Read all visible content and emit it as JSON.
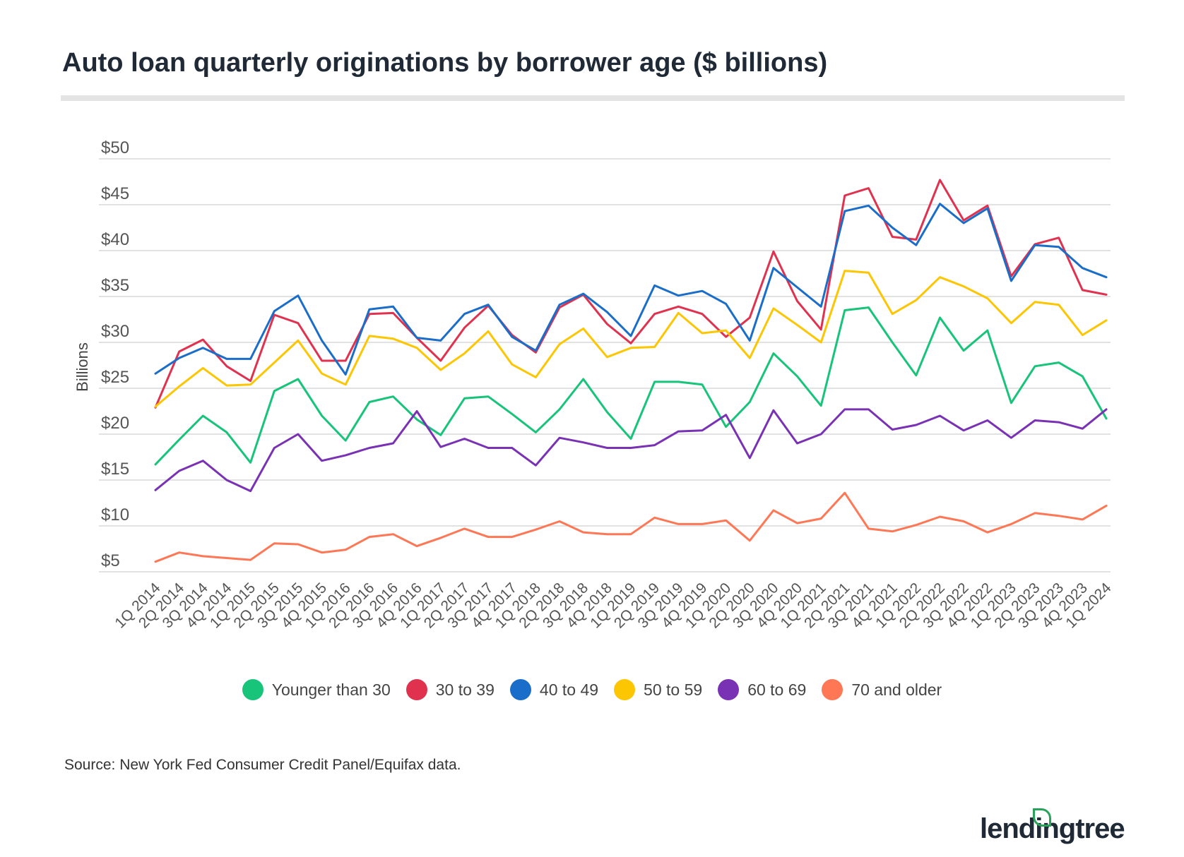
{
  "title": "Auto loan quarterly originations by borrower age ($ billions)",
  "source": "Source: New York Fed Consumer Credit Panel/Equifax data.",
  "logo_text": "lendingtree",
  "chart_data": {
    "type": "line",
    "title": "Auto loan quarterly originations by borrower age ($ billions)",
    "ylabel": "Billions",
    "xlabel": "",
    "ylim": [
      5,
      50
    ],
    "yticks": [
      5,
      10,
      15,
      20,
      25,
      30,
      35,
      40,
      45,
      50
    ],
    "ytick_labels": [
      "$5",
      "$10",
      "$15",
      "$20",
      "$25",
      "$30",
      "$35",
      "$40",
      "$45",
      "$50"
    ],
    "grid": true,
    "legend_position": "bottom",
    "categories": [
      "1Q 2014",
      "2Q 2014",
      "3Q 2014",
      "4Q 2014",
      "1Q 2015",
      "2Q 2015",
      "3Q 2015",
      "4Q 2015",
      "1Q 2016",
      "2Q 2016",
      "3Q 2016",
      "4Q 2016",
      "1Q 2017",
      "2Q 2017",
      "3Q 2017",
      "4Q 2017",
      "1Q 2018",
      "2Q 2018",
      "3Q 2018",
      "4Q 2018",
      "1Q 2019",
      "2Q 2019",
      "3Q 2019",
      "4Q 2019",
      "1Q 2020",
      "2Q 2020",
      "3Q 2020",
      "4Q 2020",
      "1Q 2021",
      "2Q 2021",
      "3Q 2021",
      "4Q 2021",
      "1Q 2022",
      "2Q 2022",
      "3Q 2022",
      "4Q 2022",
      "1Q 2023",
      "2Q 2023",
      "3Q 2023",
      "4Q 2023",
      "1Q 2024"
    ],
    "series": [
      {
        "name": "Younger than 30",
        "color": "#17c47a",
        "values": [
          16.7,
          19.4,
          22.0,
          20.2,
          16.9,
          24.7,
          26.0,
          22.0,
          19.3,
          23.5,
          24.1,
          21.6,
          19.9,
          23.9,
          24.1,
          22.2,
          20.2,
          22.7,
          26.0,
          22.4,
          19.5,
          25.7,
          25.7,
          25.4,
          20.8,
          23.5,
          28.8,
          26.3,
          23.1,
          33.5,
          33.8,
          30.0,
          26.4,
          32.7,
          29.1,
          31.3,
          23.4,
          27.4,
          27.8,
          26.3,
          21.7
        ]
      },
      {
        "name": "30 to 39",
        "color": "#e0324f",
        "values": [
          22.9,
          29.0,
          30.3,
          27.4,
          25.8,
          33.0,
          32.1,
          28.0,
          28.0,
          33.1,
          33.2,
          30.5,
          28.0,
          31.6,
          34.0,
          30.8,
          28.9,
          33.8,
          35.2,
          32.0,
          29.9,
          33.1,
          33.9,
          33.1,
          30.6,
          32.7,
          39.9,
          34.5,
          31.4,
          46.0,
          46.8,
          41.5,
          41.2,
          47.7,
          43.3,
          44.9,
          37.2,
          40.7,
          41.4,
          35.7,
          35.2
        ]
      },
      {
        "name": "40 to 49",
        "color": "#1a6dc9",
        "values": [
          26.6,
          28.3,
          29.4,
          28.2,
          28.2,
          33.4,
          35.1,
          30.2,
          26.5,
          33.6,
          33.9,
          30.5,
          30.2,
          33.1,
          34.1,
          30.6,
          29.1,
          34.1,
          35.3,
          33.3,
          30.7,
          36.2,
          35.1,
          35.6,
          34.2,
          30.2,
          38.1,
          36.0,
          33.9,
          44.3,
          44.9,
          42.5,
          40.6,
          45.1,
          43.0,
          44.6,
          36.7,
          40.6,
          40.4,
          38.1,
          37.1
        ]
      },
      {
        "name": "50 to 59",
        "color": "#fdc602",
        "values": [
          23.0,
          25.2,
          27.2,
          25.3,
          25.4,
          27.8,
          30.2,
          26.6,
          25.4,
          30.7,
          30.4,
          29.4,
          27.0,
          28.8,
          31.2,
          27.6,
          26.2,
          29.8,
          31.5,
          28.4,
          29.4,
          29.5,
          33.2,
          31.0,
          31.3,
          28.3,
          33.7,
          31.9,
          30.0,
          37.8,
          37.6,
          33.1,
          34.6,
          37.1,
          36.1,
          34.8,
          32.1,
          34.4,
          34.1,
          30.8,
          32.4
        ]
      },
      {
        "name": "60 to 69",
        "color": "#7a32b5",
        "values": [
          13.9,
          16.0,
          17.1,
          15.0,
          13.8,
          18.5,
          20.0,
          17.1,
          17.7,
          18.5,
          19.0,
          22.5,
          18.6,
          19.5,
          18.5,
          18.5,
          16.6,
          19.6,
          19.1,
          18.5,
          18.5,
          18.8,
          20.3,
          20.4,
          22.1,
          17.4,
          22.6,
          19.0,
          20.0,
          22.7,
          22.7,
          20.5,
          21.0,
          22.0,
          20.4,
          21.5,
          19.6,
          21.5,
          21.3,
          20.6,
          22.7
        ]
      },
      {
        "name": "70 and older",
        "color": "#ff7755",
        "values": [
          6.1,
          7.1,
          6.7,
          6.5,
          6.3,
          8.1,
          8.0,
          7.1,
          7.4,
          8.8,
          9.1,
          7.8,
          8.7,
          9.7,
          8.8,
          8.8,
          9.6,
          10.5,
          9.3,
          9.1,
          9.1,
          10.9,
          10.2,
          10.2,
          10.6,
          8.4,
          11.7,
          10.3,
          10.8,
          13.6,
          9.7,
          9.4,
          10.1,
          11.0,
          10.5,
          9.3,
          10.2,
          11.4,
          11.1,
          10.7,
          12.2
        ]
      }
    ]
  }
}
